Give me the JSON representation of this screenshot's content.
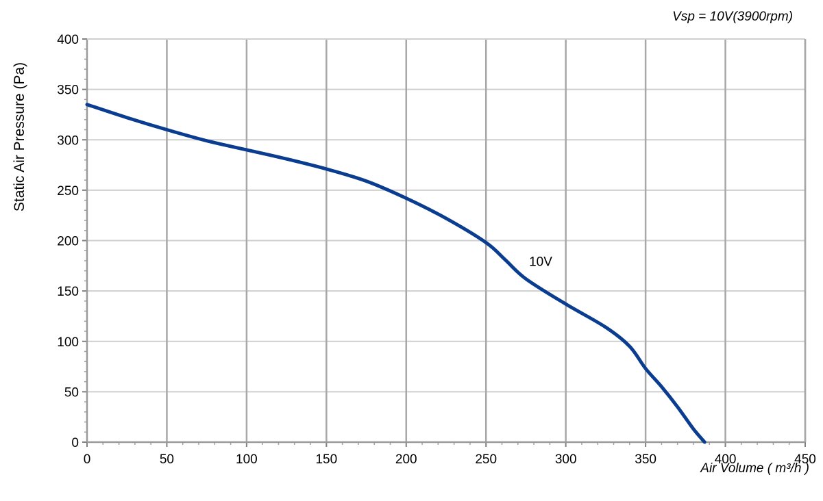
{
  "chart_data": {
    "type": "line",
    "title": "",
    "annotation": "Vsp = 10V(3900rpm)",
    "xlabel": "Air Volume ( m³/h )",
    "ylabel": "Static Air Pressure  (Pa)",
    "xlim": [
      0,
      450
    ],
    "ylim": [
      0,
      400
    ],
    "xticks": [
      0,
      50,
      100,
      150,
      200,
      250,
      300,
      350,
      400,
      450
    ],
    "yticks": [
      0,
      50,
      100,
      150,
      200,
      250,
      300,
      350,
      400
    ],
    "grid": true,
    "series": [
      {
        "name": "10V",
        "color": "#0a3d8f",
        "points": [
          [
            0,
            335
          ],
          [
            25,
            322
          ],
          [
            50,
            310
          ],
          [
            75,
            299
          ],
          [
            100,
            290
          ],
          [
            125,
            281
          ],
          [
            150,
            271
          ],
          [
            175,
            259
          ],
          [
            200,
            242
          ],
          [
            225,
            222
          ],
          [
            250,
            198
          ],
          [
            262,
            181
          ],
          [
            275,
            162
          ],
          [
            300,
            137
          ],
          [
            325,
            114
          ],
          [
            340,
            95
          ],
          [
            350,
            73
          ],
          [
            360,
            55
          ],
          [
            370,
            35
          ],
          [
            380,
            13
          ],
          [
            387,
            0
          ]
        ]
      }
    ]
  }
}
